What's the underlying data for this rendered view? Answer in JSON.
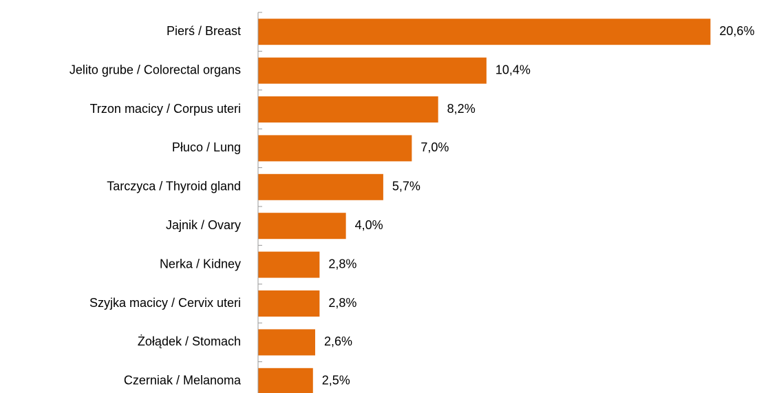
{
  "chart_data": {
    "type": "bar",
    "orientation": "horizontal",
    "categories": [
      "Pierś / Breast",
      "Jelito grube / Colorectal organs",
      "Trzon macicy / Corpus uteri",
      "Płuco / Lung",
      "Tarczyca / Thyroid gland",
      "Jajnik / Ovary",
      "Nerka / Kidney",
      "Szyjka macicy / Cervix uteri",
      "Żołądek / Stomach",
      "Czerniak / Melanoma"
    ],
    "values": [
      20.6,
      10.4,
      8.2,
      7.0,
      5.7,
      4.0,
      2.8,
      2.8,
      2.6,
      2.5
    ],
    "value_labels": [
      "20,6%",
      "10,4%",
      "8,2%",
      "7,0%",
      "5,7%",
      "4,0%",
      "2,8%",
      "2,8%",
      "2,6%",
      "2,5%"
    ],
    "color": "#e46c0a",
    "xlim": [
      0,
      23
    ]
  }
}
